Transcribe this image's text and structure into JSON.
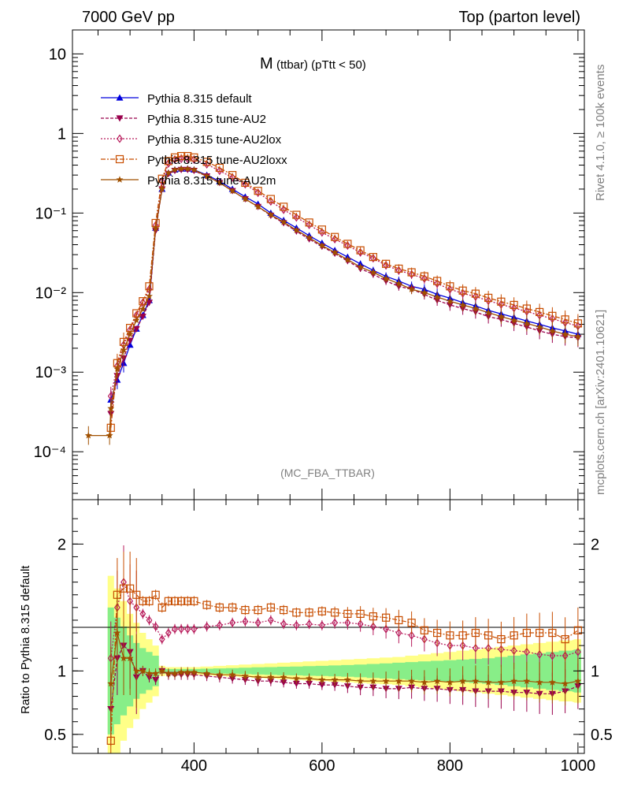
{
  "header": {
    "left": "7000 GeV pp",
    "right": "Top (parton level)"
  },
  "side_labels": {
    "rivet": "Rivet 4.1.0, ≥ 100k events",
    "mcplots": "mcplots.cern.ch [arXiv:2401.10621]"
  },
  "chart_data": [
    {
      "type": "line",
      "panel": "main",
      "title_main": "M",
      "title_sub": "(ttbar)  (pTtt < 50)",
      "watermark": "(MC_FBA_TTBAR)",
      "yscale": "log",
      "ylim": [
        2.5e-05,
        20
      ],
      "xlim": [
        210,
        1010
      ],
      "yticks": [
        {
          "value": 10,
          "label": "10"
        },
        {
          "value": 1,
          "label": "1"
        },
        {
          "value": 0.1,
          "label": "10⁻¹"
        },
        {
          "value": 0.01,
          "label": "10⁻²"
        },
        {
          "value": 0.001,
          "label": "10⁻³"
        },
        {
          "value": 0.0001,
          "label": "10⁻⁴"
        }
      ],
      "legend_position": "top-left",
      "x": [
        270,
        280,
        290,
        300,
        310,
        320,
        330,
        340,
        350,
        360,
        370,
        380,
        390,
        400,
        420,
        440,
        460,
        480,
        500,
        520,
        540,
        560,
        580,
        600,
        620,
        640,
        660,
        680,
        700,
        720,
        740,
        760,
        780,
        800,
        820,
        840,
        860,
        880,
        900,
        920,
        940,
        960,
        980,
        1000
      ],
      "series": [
        {
          "name": "Pythia 8.315 default",
          "color": "#0000dd",
          "marker": "triangle-up",
          "dash": "",
          "values": [
            0.00045,
            0.0008,
            0.0013,
            0.0022,
            0.0035,
            0.0052,
            0.008,
            0.065,
            0.2,
            0.32,
            0.35,
            0.36,
            0.36,
            0.35,
            0.3,
            0.25,
            0.2,
            0.16,
            0.13,
            0.1,
            0.081,
            0.065,
            0.052,
            0.042,
            0.034,
            0.028,
            0.023,
            0.019,
            0.016,
            0.014,
            0.012,
            0.011,
            0.0095,
            0.0085,
            0.0075,
            0.0068,
            0.006,
            0.0054,
            0.0049,
            0.0044,
            0.004,
            0.0036,
            0.0033,
            0.003
          ]
        },
        {
          "name": "Pythia 8.315 tune-AU2",
          "color": "#99004c",
          "marker": "triangle-down",
          "dash": "4,2",
          "values": [
            0.0003,
            0.0009,
            0.0015,
            0.0025,
            0.0035,
            0.005,
            0.0075,
            0.06,
            0.2,
            0.31,
            0.34,
            0.35,
            0.35,
            0.34,
            0.29,
            0.24,
            0.19,
            0.15,
            0.12,
            0.093,
            0.075,
            0.059,
            0.047,
            0.038,
            0.031,
            0.025,
            0.02,
            0.017,
            0.014,
            0.012,
            0.011,
            0.0095,
            0.008,
            0.007,
            0.0063,
            0.0057,
            0.005,
            0.0046,
            0.0041,
            0.0037,
            0.0033,
            0.003,
            0.0028,
            0.0027
          ]
        },
        {
          "name": "Pythia 8.315 tune-AU2lox",
          "color": "#b81c5c",
          "marker": "diamond-open",
          "dash": "2,2",
          "values": [
            0.0005,
            0.0012,
            0.0022,
            0.0034,
            0.0052,
            0.0075,
            0.011,
            0.07,
            0.25,
            0.42,
            0.47,
            0.48,
            0.48,
            0.47,
            0.41,
            0.34,
            0.28,
            0.23,
            0.18,
            0.14,
            0.11,
            0.088,
            0.071,
            0.057,
            0.047,
            0.039,
            0.032,
            0.027,
            0.022,
            0.019,
            0.017,
            0.015,
            0.013,
            0.011,
            0.0098,
            0.0089,
            0.0079,
            0.0071,
            0.0064,
            0.0058,
            0.0052,
            0.0047,
            0.0042,
            0.0038
          ]
        },
        {
          "name": "Pythia 8.315 tune-AU2loxx",
          "color": "#c84e00",
          "marker": "square-open",
          "dash": "6,2,2,2",
          "values": [
            0.0002,
            0.0013,
            0.0024,
            0.0036,
            0.0055,
            0.0078,
            0.012,
            0.075,
            0.27,
            0.45,
            0.5,
            0.52,
            0.52,
            0.5,
            0.44,
            0.37,
            0.3,
            0.24,
            0.19,
            0.15,
            0.12,
            0.095,
            0.076,
            0.062,
            0.05,
            0.041,
            0.034,
            0.028,
            0.023,
            0.02,
            0.018,
            0.016,
            0.014,
            0.012,
            0.0106,
            0.0097,
            0.0086,
            0.0077,
            0.007,
            0.0063,
            0.0057,
            0.0051,
            0.0046,
            0.0041
          ]
        },
        {
          "name": "Pythia 8.315 tune-AU2m",
          "color": "#a05000",
          "marker": "star",
          "dash": "",
          "values": [
            0.00035,
            0.0011,
            0.0019,
            0.003,
            0.0045,
            0.0062,
            0.009,
            0.064,
            0.2,
            0.32,
            0.35,
            0.36,
            0.36,
            0.35,
            0.29,
            0.24,
            0.19,
            0.15,
            0.12,
            0.095,
            0.077,
            0.061,
            0.049,
            0.039,
            0.032,
            0.026,
            0.021,
            0.018,
            0.015,
            0.013,
            0.011,
            0.01,
            0.0088,
            0.0078,
            0.007,
            0.0063,
            0.0056,
            0.005,
            0.0045,
            0.0041,
            0.0037,
            0.0033,
            0.003,
            0.0028
          ]
        }
      ],
      "extra_points": {
        "series": "Pythia 8.315 tune-AU2m",
        "x": [
          235,
          268
        ],
        "values": [
          0.00016,
          0.00016
        ]
      }
    },
    {
      "type": "line",
      "panel": "ratio",
      "ylabel": "Ratio to Pythia 8.315 default",
      "xlabel": "",
      "ylim": [
        0.35,
        2.35
      ],
      "xlim": [
        210,
        1010
      ],
      "yticks": [
        {
          "value": 2,
          "label": "2"
        },
        {
          "value": 1,
          "label": "1"
        },
        {
          "value": 0.5,
          "label": "0.5"
        }
      ],
      "xticks": [
        {
          "value": 400,
          "label": "400"
        },
        {
          "value": 600,
          "label": "600"
        },
        {
          "value": 800,
          "label": "800"
        },
        {
          "value": 1000,
          "label": "1000"
        }
      ],
      "band_colors": {
        "outer": "#ffff88",
        "inner": "#88ee88"
      },
      "x": [
        270,
        280,
        290,
        300,
        310,
        320,
        330,
        340,
        350,
        360,
        370,
        380,
        390,
        400,
        420,
        440,
        460,
        480,
        500,
        520,
        540,
        560,
        580,
        600,
        620,
        640,
        660,
        680,
        700,
        720,
        740,
        760,
        780,
        800,
        820,
        840,
        860,
        880,
        900,
        920,
        940,
        960,
        980,
        1000
      ],
      "bands": {
        "outer_half_width": [
          0.75,
          0.65,
          0.55,
          0.45,
          0.38,
          0.3,
          0.25,
          0.2,
          0.04,
          0.03,
          0.03,
          0.03,
          0.03,
          0.03,
          0.035,
          0.04,
          0.045,
          0.05,
          0.055,
          0.06,
          0.065,
          0.07,
          0.075,
          0.08,
          0.085,
          0.09,
          0.095,
          0.1,
          0.105,
          0.11,
          0.12,
          0.13,
          0.14,
          0.15,
          0.16,
          0.17,
          0.18,
          0.19,
          0.2,
          0.21,
          0.22,
          0.23,
          0.24,
          0.25
        ],
        "inner_half_width": [
          0.5,
          0.42,
          0.35,
          0.28,
          0.22,
          0.18,
          0.15,
          0.12,
          0.02,
          0.015,
          0.015,
          0.015,
          0.015,
          0.015,
          0.018,
          0.02,
          0.022,
          0.025,
          0.028,
          0.03,
          0.033,
          0.035,
          0.038,
          0.04,
          0.043,
          0.046,
          0.05,
          0.055,
          0.06,
          0.065,
          0.07,
          0.075,
          0.08,
          0.085,
          0.09,
          0.095,
          0.1,
          0.11,
          0.12,
          0.13,
          0.14,
          0.15,
          0.16,
          0.17
        ]
      },
      "series": [
        {
          "name": "Pythia 8.315 tune-AU2",
          "color": "#99004c",
          "marker": "triangle-down",
          "dash": "4,2",
          "values": [
            0.7,
            1.1,
            1.2,
            1.15,
            0.95,
            1.0,
            0.95,
            0.93,
            1.0,
            0.97,
            0.97,
            0.97,
            0.97,
            0.97,
            0.96,
            0.95,
            0.94,
            0.93,
            0.92,
            0.92,
            0.91,
            0.9,
            0.9,
            0.89,
            0.89,
            0.88,
            0.87,
            0.87,
            0.86,
            0.86,
            0.87,
            0.86,
            0.86,
            0.85,
            0.85,
            0.84,
            0.84,
            0.84,
            0.83,
            0.83,
            0.82,
            0.82,
            0.84,
            0.88
          ]
        },
        {
          "name": "Pythia 8.315 tune-AU2lox",
          "color": "#b81c5c",
          "marker": "diamond-open",
          "dash": "2,2",
          "values": [
            1.1,
            1.5,
            1.7,
            1.55,
            1.5,
            1.45,
            1.4,
            1.35,
            1.25,
            1.3,
            1.33,
            1.33,
            1.33,
            1.33,
            1.35,
            1.36,
            1.38,
            1.39,
            1.38,
            1.4,
            1.37,
            1.36,
            1.37,
            1.36,
            1.38,
            1.38,
            1.37,
            1.35,
            1.33,
            1.3,
            1.28,
            1.25,
            1.22,
            1.2,
            1.2,
            1.18,
            1.18,
            1.17,
            1.16,
            1.15,
            1.13,
            1.12,
            1.12,
            1.15
          ]
        },
        {
          "name": "Pythia 8.315 tune-AU2loxx",
          "color": "#c84e00",
          "marker": "square-open",
          "dash": "6,2,2,2",
          "values": [
            0.45,
            1.6,
            1.65,
            1.65,
            1.6,
            1.55,
            1.55,
            1.6,
            1.5,
            1.55,
            1.55,
            1.55,
            1.55,
            1.55,
            1.52,
            1.5,
            1.5,
            1.48,
            1.48,
            1.5,
            1.48,
            1.46,
            1.46,
            1.47,
            1.46,
            1.45,
            1.45,
            1.43,
            1.42,
            1.4,
            1.38,
            1.32,
            1.3,
            1.28,
            1.28,
            1.3,
            1.28,
            1.25,
            1.28,
            1.3,
            1.3,
            1.3,
            1.25,
            1.32
          ]
        },
        {
          "name": "Pythia 8.315 tune-AU2m",
          "color": "#a05000",
          "marker": "star",
          "dash": "",
          "values": [
            0.9,
            1.3,
            1.1,
            1.1,
            1.0,
            1.0,
            0.98,
            0.98,
            1.0,
            0.98,
            0.98,
            0.99,
            0.99,
            0.99,
            0.98,
            0.97,
            0.97,
            0.96,
            0.95,
            0.95,
            0.95,
            0.94,
            0.94,
            0.93,
            0.93,
            0.93,
            0.92,
            0.92,
            0.92,
            0.92,
            0.92,
            0.91,
            0.92,
            0.91,
            0.92,
            0.92,
            0.91,
            0.91,
            0.92,
            0.92,
            0.91,
            0.91,
            0.9,
            0.92
          ]
        }
      ]
    }
  ]
}
